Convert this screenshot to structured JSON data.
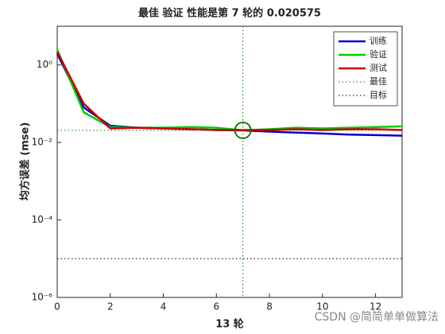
{
  "chart_data": {
    "type": "line",
    "title": "最佳 验证 性能是第 7 轮的 0.020575",
    "xlabel": "13 轮",
    "ylabel": "均方误差 (mse)",
    "x": [
      0,
      1,
      2,
      3,
      4,
      5,
      6,
      7,
      8,
      9,
      10,
      11,
      12,
      13
    ],
    "series": [
      {
        "name": "训练",
        "color": "#0000cc",
        "values": [
          1.95,
          0.08,
          0.027,
          0.024,
          0.023,
          0.022,
          0.021,
          0.0205,
          0.019,
          0.018,
          0.017,
          0.016,
          0.0155,
          0.015
        ]
      },
      {
        "name": "验证",
        "color": "#00cc00",
        "values": [
          2.5,
          0.06,
          0.025,
          0.024,
          0.024,
          0.025,
          0.024,
          0.020575,
          0.022,
          0.024,
          0.023,
          0.024,
          0.025,
          0.026
        ]
      },
      {
        "name": "测试",
        "color": "#cc0000",
        "values": [
          2.2,
          0.1,
          0.023,
          0.024,
          0.023,
          0.022,
          0.021,
          0.021,
          0.021,
          0.022,
          0.021,
          0.022,
          0.022,
          0.021
        ]
      }
    ],
    "best": {
      "name": "最佳",
      "x": 7,
      "y": 0.020575,
      "color": "#007700"
    },
    "goal": {
      "name": "目标",
      "value": 1e-05,
      "color": "#000000"
    },
    "xlim": [
      0,
      13
    ],
    "xticks": [
      0,
      2,
      4,
      6,
      8,
      10,
      12
    ],
    "ylim": [
      1e-06,
      10
    ],
    "log_y": true,
    "yticks": [
      {
        "value": 1,
        "label": "10⁰"
      },
      {
        "value": 0.01,
        "label": "10⁻²"
      },
      {
        "value": 0.0001,
        "label": "10⁻⁴"
      },
      {
        "value": 1e-06,
        "label": "10⁻⁶"
      }
    ],
    "legend": "northeast",
    "watermark": "CSDN @简简单单做算法"
  }
}
